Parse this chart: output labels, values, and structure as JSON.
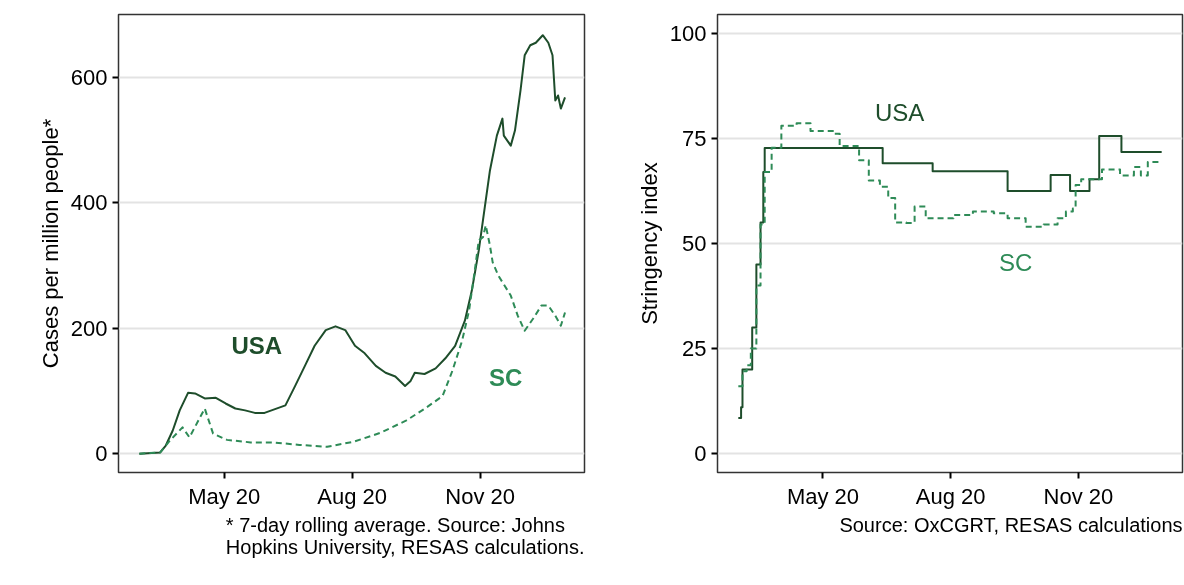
{
  "chart_data": [
    {
      "type": "line",
      "ylabel": "Cases per million people*",
      "xlim": [
        "2020-02-15",
        "2021-01-15"
      ],
      "ylim": [
        -30,
        700
      ],
      "xticks": [
        {
          "value": "2020-05-01",
          "label": "May 20"
        },
        {
          "value": "2020-08-01",
          "label": "Aug 20"
        },
        {
          "value": "2020-11-01",
          "label": "Nov 20"
        }
      ],
      "yticks": [
        0,
        200,
        400,
        600
      ],
      "grid": "y",
      "annotations": [
        "* 7-day rolling average. Source: Johns Hopkins University, RESAS calculations."
      ],
      "series": [
        {
          "name": "USA",
          "color": "#1e4d2b",
          "line_style": "solid",
          "x": [
            "2020-03-01",
            "2020-03-16",
            "2020-03-20",
            "2020-03-25",
            "2020-03-30",
            "2020-04-05",
            "2020-04-10",
            "2020-04-17",
            "2020-04-25",
            "2020-05-02",
            "2020-05-09",
            "2020-05-16",
            "2020-05-23",
            "2020-05-30",
            "2020-06-14",
            "2020-06-21",
            "2020-06-28",
            "2020-07-05",
            "2020-07-13",
            "2020-07-20",
            "2020-07-27",
            "2020-08-03",
            "2020-08-10",
            "2020-08-18",
            "2020-08-25",
            "2020-09-01",
            "2020-09-08",
            "2020-09-12",
            "2020-09-15",
            "2020-09-22",
            "2020-09-30",
            "2020-10-07",
            "2020-10-14",
            "2020-10-21",
            "2020-10-26",
            "2020-10-31",
            "2020-11-03",
            "2020-11-08",
            "2020-11-13",
            "2020-11-17",
            "2020-11-18",
            "2020-11-23",
            "2020-11-26",
            "2020-11-30",
            "2020-12-03",
            "2020-12-07",
            "2020-12-11",
            "2020-12-16",
            "2020-12-20",
            "2020-12-23",
            "2020-12-25",
            "2020-12-27",
            "2020-12-29",
            "2021-01-01"
          ],
          "values": [
            0,
            2,
            13,
            37,
            69,
            97,
            96,
            88,
            89,
            80,
            72,
            69,
            65,
            65,
            77,
            108,
            140,
            172,
            197,
            203,
            197,
            172,
            160,
            140,
            129,
            123,
            108,
            116,
            129,
            127,
            136,
            152,
            172,
            212,
            260,
            324,
            372,
            451,
            507,
            534,
            507,
            491,
            515,
            579,
            635,
            651,
            655,
            667,
            655,
            635,
            563,
            571,
            550,
            568
          ]
        },
        {
          "name": "SC",
          "color": "#2e8b57",
          "line_style": "dashed",
          "x": [
            "2020-03-01",
            "2020-03-16",
            "2020-03-23",
            "2020-04-01",
            "2020-04-06",
            "2020-04-17",
            "2020-04-23",
            "2020-05-03",
            "2020-05-20",
            "2020-06-05",
            "2020-06-24",
            "2020-07-14",
            "2020-08-02",
            "2020-08-21",
            "2020-09-09",
            "2020-09-23",
            "2020-10-05",
            "2020-10-12",
            "2020-10-19",
            "2020-10-24",
            "2020-10-28",
            "2020-10-31",
            "2020-11-03",
            "2020-11-05",
            "2020-11-08",
            "2020-11-10",
            "2020-11-14",
            "2020-11-23",
            "2020-11-28",
            "2020-12-03",
            "2020-12-09",
            "2020-12-15",
            "2020-12-20",
            "2020-12-25",
            "2020-12-29",
            "2021-01-01"
          ],
          "values": [
            0,
            2,
            21,
            42,
            26,
            72,
            32,
            22,
            18,
            18,
            14,
            11,
            19,
            33,
            53,
            73,
            92,
            132,
            180,
            228,
            290,
            340,
            345,
            364,
            332,
            305,
            284,
            252,
            220,
            196,
            215,
            236,
            236,
            220,
            204,
            225
          ]
        }
      ]
    },
    {
      "type": "step",
      "ylabel": "Stringency index",
      "xlim": [
        "2020-02-15",
        "2021-01-15"
      ],
      "ylim": [
        -4.5,
        104.5
      ],
      "xticks": [
        {
          "value": "2020-05-01",
          "label": "May 20"
        },
        {
          "value": "2020-08-01",
          "label": "Aug 20"
        },
        {
          "value": "2020-11-01",
          "label": "Nov 20"
        }
      ],
      "yticks": [
        0,
        25,
        50,
        75,
        100
      ],
      "grid": "y",
      "annotations": [
        "Source: OxCGRT, RESAS calculations"
      ],
      "series": [
        {
          "name": "USA",
          "color": "#1e4d2b",
          "line_style": "solid",
          "x": [
            "2020-03-01",
            "2020-03-03",
            "2020-03-04",
            "2020-03-11",
            "2020-03-14",
            "2020-03-17",
            "2020-03-19",
            "2020-03-20",
            "2020-06-13",
            "2020-07-19",
            "2020-09-11",
            "2020-10-12",
            "2020-10-26",
            "2020-11-09",
            "2020-11-16",
            "2020-12-02",
            "2020-12-31"
          ],
          "values": [
            8.5,
            11,
            20,
            30,
            45,
            55,
            67,
            72.7,
            69.1,
            67.2,
            62.5,
            66.3,
            62.5,
            65.3,
            75.6,
            71.8,
            71.8
          ]
        },
        {
          "name": "SC",
          "color": "#2e8b57",
          "line_style": "dashed",
          "x": [
            "2020-03-01",
            "2020-03-04",
            "2020-03-07",
            "2020-03-10",
            "2020-03-14",
            "2020-03-17",
            "2020-03-20",
            "2020-03-25",
            "2020-04-01",
            "2020-04-12",
            "2020-04-22",
            "2020-05-09",
            "2020-05-13",
            "2020-05-27",
            "2020-06-03",
            "2020-06-11",
            "2020-06-17",
            "2020-06-22",
            "2020-06-30",
            "2020-07-06",
            "2020-07-14",
            "2020-08-03",
            "2020-08-17",
            "2020-09-01",
            "2020-09-11",
            "2020-09-24",
            "2020-10-07",
            "2020-10-17",
            "2020-10-23",
            "2020-10-28",
            "2020-10-30",
            "2020-11-03",
            "2020-11-18",
            "2020-12-01",
            "2020-12-11",
            "2020-12-16",
            "2020-12-21",
            "2020-12-31"
          ],
          "values": [
            16,
            19.6,
            21,
            25,
            40,
            54.5,
            67,
            72.8,
            78,
            78.6,
            76.8,
            76.1,
            73.2,
            69.8,
            65,
            63.5,
            60.8,
            55,
            54.9,
            58.8,
            56,
            56.8,
            57.6,
            57.2,
            56,
            54,
            54.5,
            56,
            57.6,
            58.3,
            63.9,
            65.3,
            67.6,
            66.2,
            68.2,
            66.2,
            69.4,
            69.6
          ]
        }
      ]
    }
  ]
}
